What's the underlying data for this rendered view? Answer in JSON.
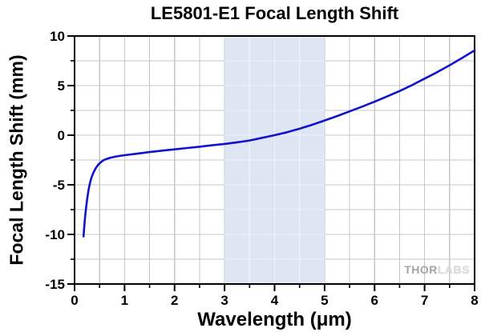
{
  "chart_data": {
    "type": "line",
    "title": "LE5801-E1 Focal Length Shift",
    "xlabel": "Wavelength (μm)",
    "ylabel": "Focal Length Shift (mm)",
    "xlim": [
      0,
      8
    ],
    "ylim": [
      -15,
      10
    ],
    "x_major_ticks": [
      0,
      1,
      2,
      3,
      4,
      5,
      6,
      7,
      8
    ],
    "y_major_ticks": [
      -15,
      -10,
      -5,
      0,
      5,
      10
    ],
    "x_minor_step": 0.5,
    "y_minor_step": 2.5,
    "grid": true,
    "legend_position": "none",
    "shaded_band": {
      "x_start": 3,
      "x_end": 5
    },
    "series": [
      {
        "name": "Focal Length Shift",
        "points": [
          [
            0.18,
            -10.2
          ],
          [
            0.2,
            -8.8
          ],
          [
            0.22,
            -7.8
          ],
          [
            0.25,
            -6.5
          ],
          [
            0.28,
            -5.5
          ],
          [
            0.31,
            -4.8
          ],
          [
            0.34,
            -4.25
          ],
          [
            0.38,
            -3.75
          ],
          [
            0.42,
            -3.35
          ],
          [
            0.47,
            -3.0
          ],
          [
            0.52,
            -2.75
          ],
          [
            0.58,
            -2.52
          ],
          [
            0.65,
            -2.38
          ],
          [
            0.72,
            -2.27
          ],
          [
            0.8,
            -2.18
          ],
          [
            0.9,
            -2.09
          ],
          [
            1.0,
            -2.02
          ],
          [
            1.25,
            -1.86
          ],
          [
            1.5,
            -1.7
          ],
          [
            1.75,
            -1.56
          ],
          [
            2.0,
            -1.43
          ],
          [
            2.25,
            -1.29
          ],
          [
            2.5,
            -1.16
          ],
          [
            2.75,
            -1.02
          ],
          [
            3.0,
            -0.88
          ],
          [
            3.25,
            -0.72
          ],
          [
            3.5,
            -0.53
          ],
          [
            3.75,
            -0.27
          ],
          [
            4.0,
            0.0
          ],
          [
            4.25,
            0.3
          ],
          [
            4.5,
            0.65
          ],
          [
            4.75,
            1.05
          ],
          [
            5.0,
            1.48
          ],
          [
            5.25,
            1.93
          ],
          [
            5.5,
            2.4
          ],
          [
            5.75,
            2.88
          ],
          [
            6.0,
            3.38
          ],
          [
            6.25,
            3.9
          ],
          [
            6.5,
            4.45
          ],
          [
            6.75,
            5.05
          ],
          [
            7.0,
            5.7
          ],
          [
            7.25,
            6.35
          ],
          [
            7.5,
            7.05
          ],
          [
            7.75,
            7.78
          ],
          [
            8.0,
            8.55
          ]
        ]
      }
    ]
  },
  "watermark": {
    "thor": "THOR",
    "labs": "LABS"
  },
  "colors": {
    "curve": "#1212cc",
    "band": "#dce4f2",
    "grid": "#c6c6c6",
    "grid_in_band": "#eef2f9",
    "axis": "#000000",
    "watermark_thor": "#a4a4a4",
    "watermark_labs": "#dcdcdc"
  }
}
